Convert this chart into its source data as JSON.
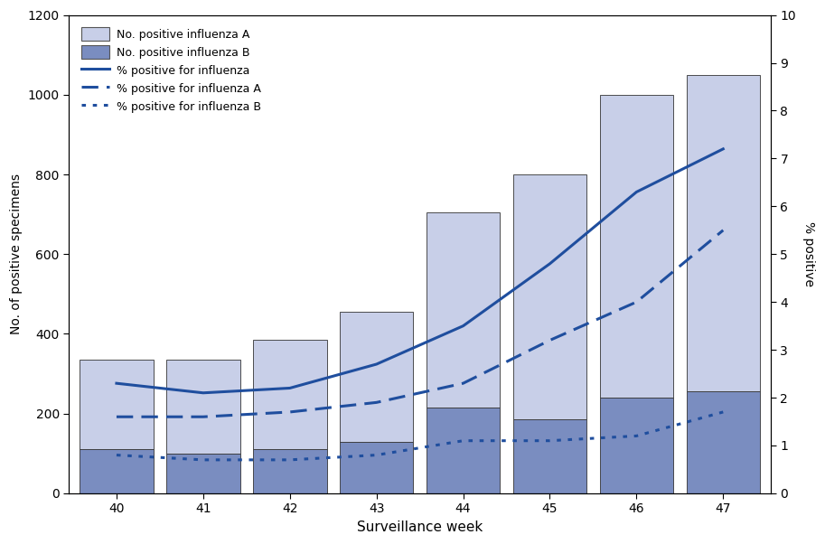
{
  "weeks": [
    40,
    41,
    42,
    43,
    44,
    45,
    46,
    47
  ],
  "influenza_B": [
    110,
    100,
    110,
    130,
    215,
    185,
    240,
    255
  ],
  "influenza_A": [
    225,
    235,
    275,
    325,
    490,
    615,
    760,
    795
  ],
  "pct_total": [
    2.3,
    2.1,
    2.2,
    2.7,
    3.5,
    4.8,
    6.3,
    7.2
  ],
  "pct_A": [
    1.6,
    1.6,
    1.7,
    1.9,
    2.3,
    3.2,
    4.0,
    5.5
  ],
  "pct_B": [
    0.8,
    0.7,
    0.7,
    0.8,
    1.1,
    1.1,
    1.2,
    1.7
  ],
  "color_A": "#c8cfe8",
  "color_B": "#7a8dc0",
  "color_line": "#1f4e9e",
  "ylim_left": [
    0,
    1200
  ],
  "ylim_right": [
    0,
    10
  ],
  "yticks_left": [
    0,
    200,
    400,
    600,
    800,
    1000,
    1200
  ],
  "yticks_right": [
    0,
    1,
    2,
    3,
    4,
    5,
    6,
    7,
    8,
    9,
    10
  ],
  "xlabel": "Surveillance week",
  "ylabel_left": "No. of positive specimens",
  "ylabel_right": "% positive",
  "legend_A_label": "No. positive influenza A",
  "legend_B_label": "No. positive influenza B",
  "legend_pct_label": "% positive for influenza",
  "legend_pctA_label": "% positive for influenza A",
  "legend_pctB_label": "% positive for influenza B",
  "bar_width": 0.85,
  "background_color": "#ffffff"
}
